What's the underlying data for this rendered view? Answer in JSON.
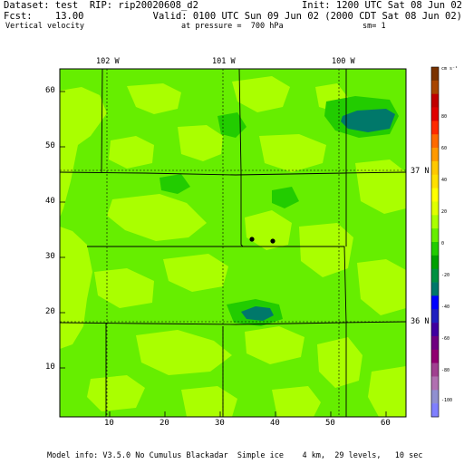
{
  "header": {
    "dataset": "Dataset: test  RIP: rip20020608_d2",
    "init": "Init: 1200 UTC Sat 08 Jun 02",
    "fcst": "Fcst:    13.00",
    "valid": "Valid: 0100 UTC Sun 09 Jun 02 (2000 CDT Sat 08 Jun 02)",
    "field": "Vertical velocity",
    "pressure": "at pressure =  700 hPa",
    "smoothing": "sm= 1"
  },
  "footer": {
    "model_info": "Model info: V3.5.0 No Cumulus Blackadar  Simple ice    4 km,  29 levels,   10 sec"
  },
  "grid_axis": {
    "x_ticks": [
      "10",
      "20",
      "30",
      "40",
      "50",
      "60"
    ],
    "y_ticks": [
      "60",
      "50",
      "40",
      "30",
      "20",
      "10"
    ],
    "x_range": [
      1,
      64
    ],
    "y_range": [
      1,
      64
    ]
  },
  "geo_labels": {
    "lon_102": "102 W",
    "lon_101": "101 W",
    "lon_100": "100 W",
    "lat_37": "37 N",
    "lat_36": "36 N"
  },
  "colorbar": {
    "unit": "cm s⁻¹",
    "labels": [
      "80",
      "60",
      "40",
      "20",
      "0",
      "-20",
      "-40",
      "-60",
      "-80",
      "-100"
    ],
    "colors": [
      "#7a3300",
      "#a84600",
      "#c00000",
      "#e00000",
      "#ff2a00",
      "#ff6a00",
      "#ff9a00",
      "#ffc800",
      "#ffe000",
      "#ffff00",
      "#e0ff00",
      "#aaff00",
      "#66ee00",
      "#22cc00",
      "#00a000",
      "#009040",
      "#00786a",
      "#0000ff",
      "#2020c0",
      "#4000a0",
      "#700080",
      "#900070",
      "#a04090",
      "#b070b0",
      "#9090d0",
      "#8080ff"
    ]
  },
  "colors": {
    "field_base": "#66ee00",
    "field_light": "#aaff00",
    "field_dark": "#22cc00",
    "field_darkest": "#00786a"
  }
}
